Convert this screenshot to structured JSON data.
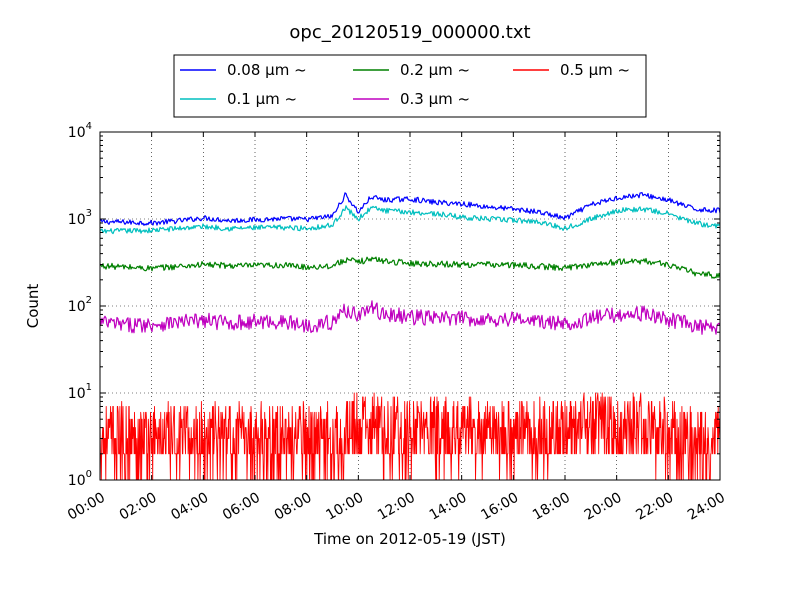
{
  "chart_data": {
    "type": "line",
    "title": "opc_20120519_000000.txt",
    "xlabel": "Time on 2012-05-19 (JST)",
    "ylabel": "Count",
    "yscale": "log",
    "ylim": [
      1,
      10000
    ],
    "xlim": [
      "00:00",
      "24:00"
    ],
    "x_ticks": [
      "00:00",
      "02:00",
      "04:00",
      "06:00",
      "08:00",
      "10:00",
      "12:00",
      "14:00",
      "16:00",
      "18:00",
      "20:00",
      "22:00",
      "24:00"
    ],
    "y_ticks": [
      {
        "base": "10",
        "exp": "0"
      },
      {
        "base": "10",
        "exp": "1"
      },
      {
        "base": "10",
        "exp": "2"
      },
      {
        "base": "10",
        "exp": "3"
      },
      {
        "base": "10",
        "exp": "4"
      }
    ],
    "grid": true,
    "legend_placement": "top-center",
    "x": [
      "00:00",
      "01:00",
      "02:00",
      "03:00",
      "04:00",
      "05:00",
      "06:00",
      "07:00",
      "08:00",
      "09:00",
      "09:30",
      "10:00",
      "10:30",
      "11:00",
      "12:00",
      "13:00",
      "14:00",
      "15:00",
      "16:00",
      "17:00",
      "18:00",
      "19:00",
      "20:00",
      "21:00",
      "22:00",
      "23:00",
      "24:00"
    ],
    "series": [
      {
        "name": "0.08 μm ~",
        "color": "#0000ff",
        "values": [
          930,
          920,
          900,
          950,
          1030,
          960,
          980,
          1010,
          990,
          1080,
          1900,
          1200,
          1800,
          1650,
          1700,
          1550,
          1500,
          1380,
          1300,
          1200,
          1020,
          1450,
          1750,
          1900,
          1650,
          1300,
          1250
        ]
      },
      {
        "name": "0.1 μm ~",
        "color": "#00bfbf",
        "values": [
          720,
          730,
          740,
          780,
          820,
          780,
          790,
          800,
          780,
          850,
          1350,
          1000,
          1350,
          1250,
          1200,
          1150,
          1050,
          1000,
          970,
          930,
          780,
          1000,
          1250,
          1300,
          1150,
          900,
          820
        ]
      },
      {
        "name": "0.2 μm ~",
        "color": "#008000",
        "values": [
          290,
          280,
          270,
          285,
          300,
          290,
          290,
          295,
          280,
          290,
          340,
          320,
          350,
          330,
          310,
          305,
          300,
          300,
          295,
          285,
          275,
          300,
          320,
          330,
          300,
          240,
          220
        ]
      },
      {
        "name": "0.3 μm ~",
        "color": "#bf00bf",
        "values": [
          65,
          60,
          62,
          65,
          68,
          64,
          66,
          66,
          60,
          65,
          90,
          80,
          95,
          80,
          75,
          72,
          72,
          70,
          72,
          66,
          62,
          72,
          80,
          82,
          70,
          60,
          52
        ]
      },
      {
        "name": "0.5 μm ~",
        "color": "#ff0000",
        "values": [
          3,
          3,
          3,
          3,
          3,
          3,
          3,
          3,
          3,
          3,
          3.5,
          4,
          4,
          3.5,
          3.5,
          3.5,
          3.5,
          3.5,
          3.5,
          3.5,
          3.5,
          4,
          4,
          4,
          3.5,
          3,
          3
        ]
      }
    ]
  }
}
